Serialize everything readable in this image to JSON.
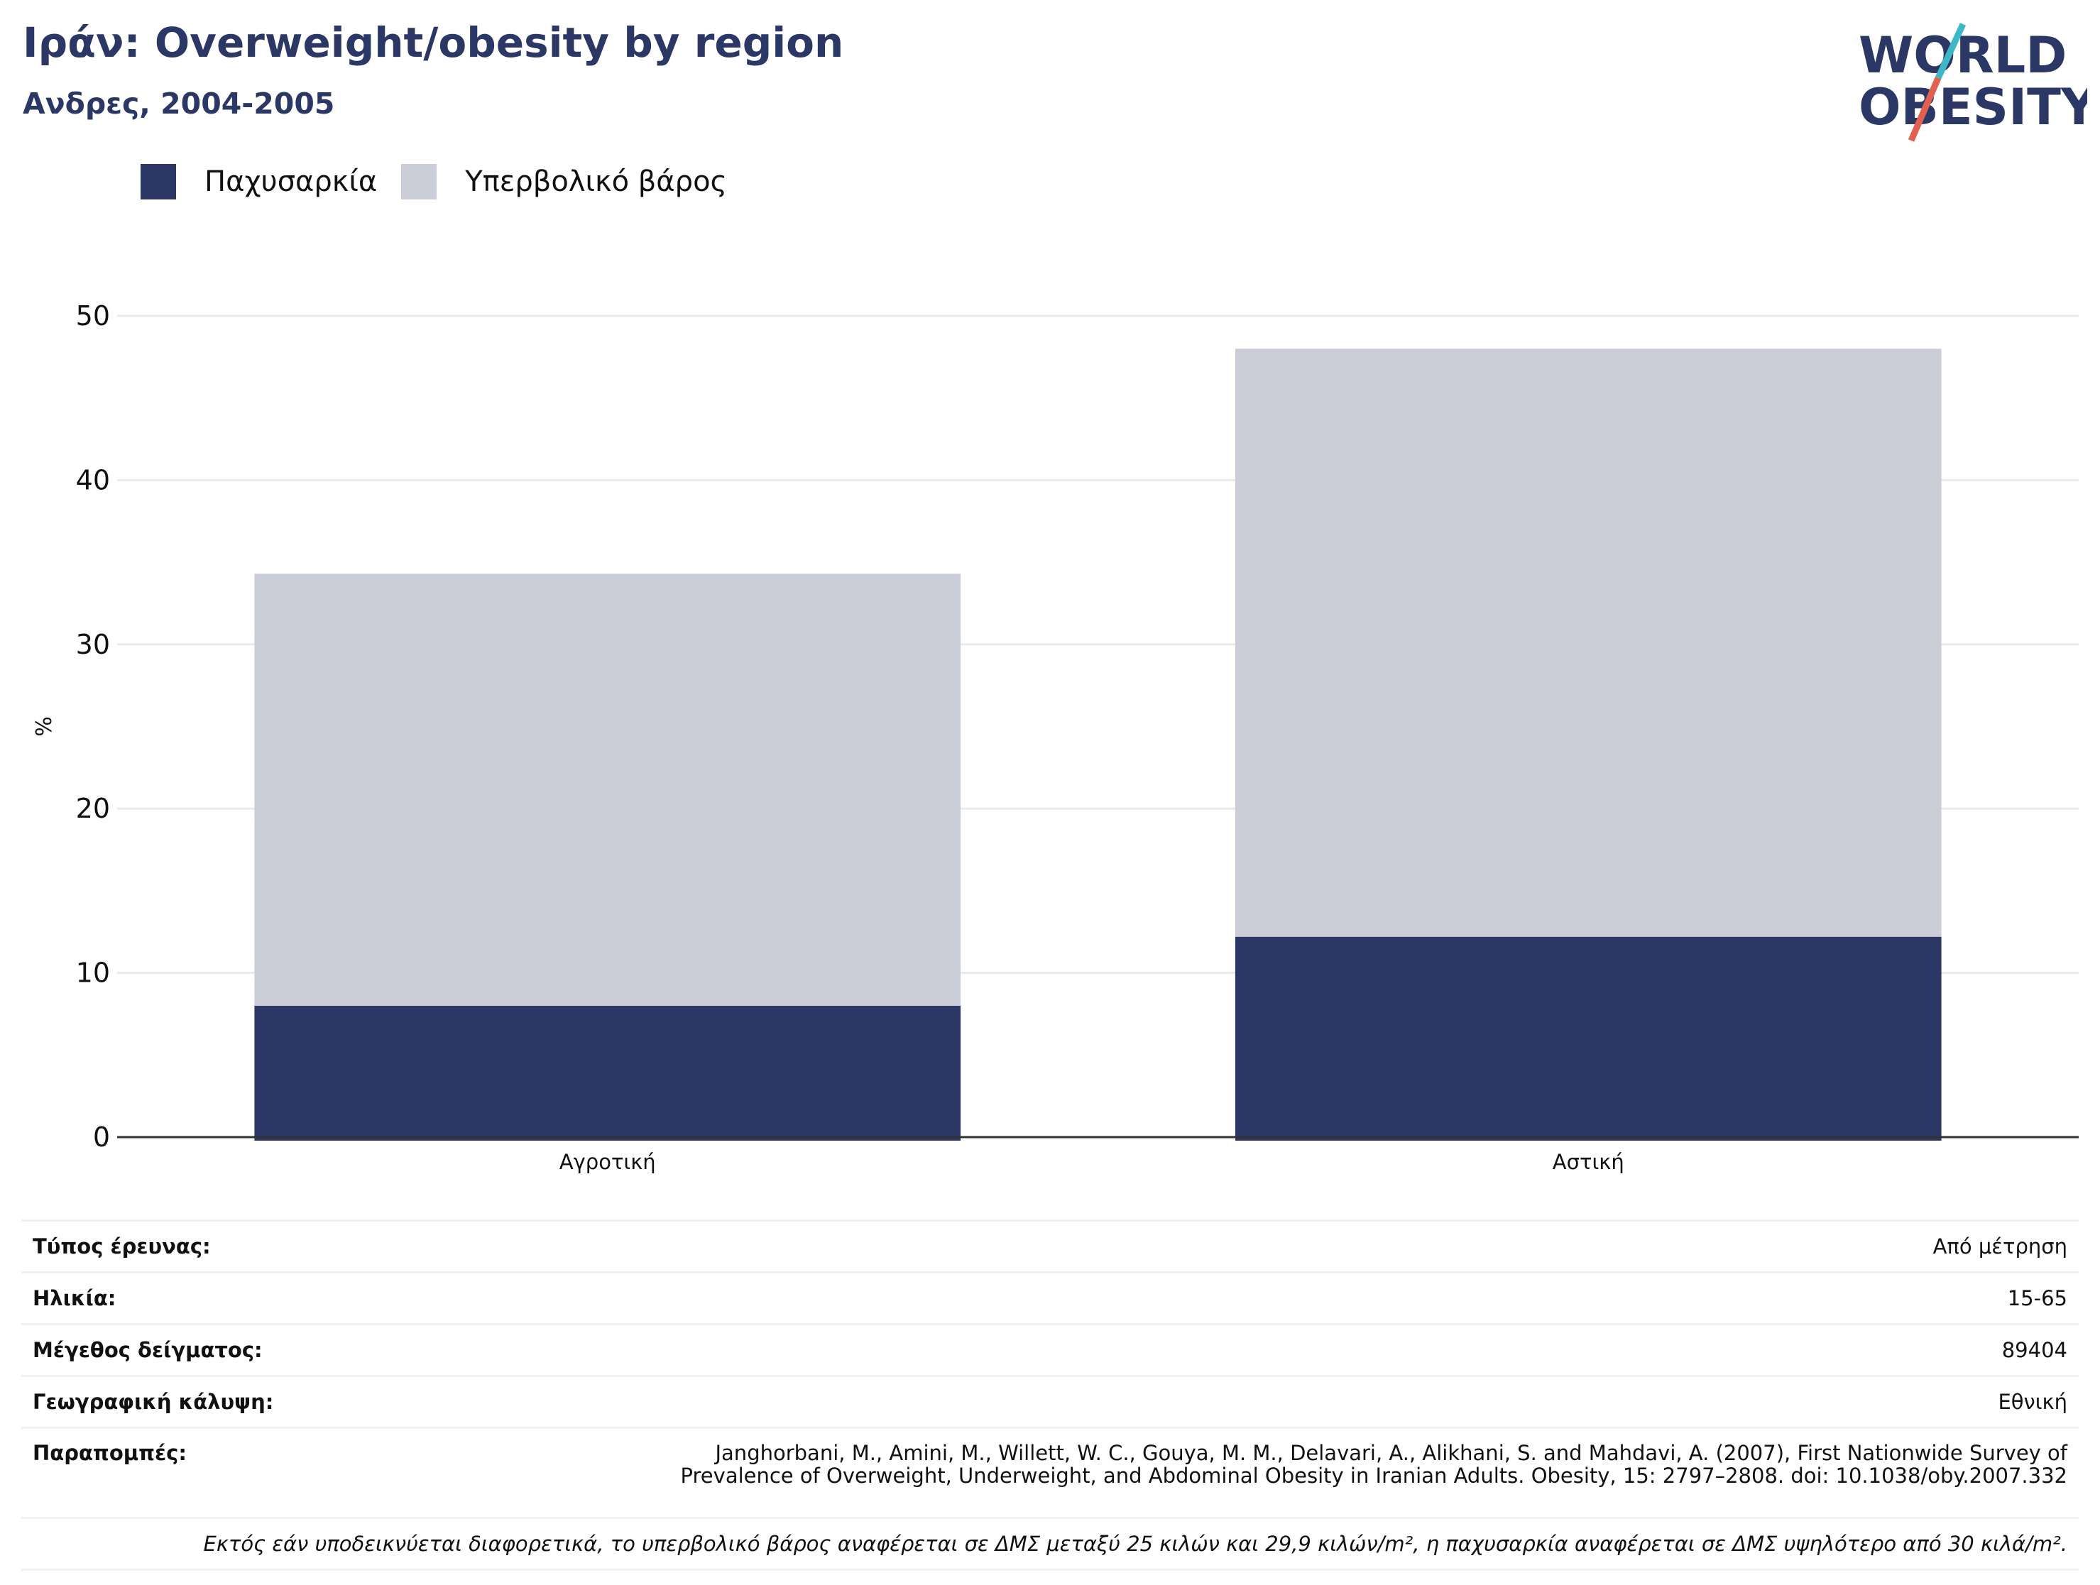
{
  "header": {
    "title": "Ιράν: Overweight/obesity by region",
    "subtitle": "Ανδρες, 2004-2005"
  },
  "logo": {
    "line1": "WORLD",
    "line2": "OBESITY",
    "colors": {
      "text": "#2b3764",
      "slash_teal": "#3fb7c6",
      "slash_red": "#e0614f"
    }
  },
  "colors": {
    "obesity": "#2b3764",
    "overweight": "#cbcdd9",
    "axis": "#333333",
    "grid": "#e8eaf0"
  },
  "chart_data": {
    "type": "bar",
    "stacked": true,
    "categories": [
      "Αγροτική",
      "Αστική"
    ],
    "series": [
      {
        "name": "Παχυσαρκία",
        "values": [
          8.0,
          12.2
        ]
      },
      {
        "name": "Υπερβολικό βάρος",
        "values": [
          26.3,
          35.8
        ]
      }
    ],
    "ylabel": "%",
    "ylim": [
      0,
      50
    ],
    "yticks": [
      0,
      10,
      20,
      30,
      40,
      50
    ],
    "grid": true,
    "legend_position": "top-left"
  },
  "info": {
    "survey_type": {
      "label": "Τύπος έρευνας:",
      "value": "Από μέτρηση"
    },
    "age": {
      "label": "Ηλικία:",
      "value": "15-65"
    },
    "sample_size": {
      "label": "Μέγεθος δείγματος:",
      "value": "89404"
    },
    "coverage": {
      "label": "Γεωγραφική κάλυψη:",
      "value": "Εθνική"
    },
    "references": {
      "label": "Παραπομπές:",
      "line1": "Janghorbani, M., Amini, M., Willett, W. C., Gouya, M. M., Delavari, A., Alikhani, S. and Mahdavi, A. (2007), First Nationwide Survey of",
      "line2": "Prevalence of Overweight, Underweight, and Abdominal Obesity in Iranian Adults. Obesity, 15: 2797–2808. doi: 10.1038/oby.2007.332"
    },
    "note": "Εκτός εάν υποδεικνύεται διαφορετικά, το υπερβολικό βάρος αναφέρεται σε ΔΜΣ μεταξύ 25 κιλών και 29,9 κιλών/m², η παχυσαρκία αναφέρεται σε ΔΜΣ υψηλότερο από 30 κιλά/m²."
  }
}
